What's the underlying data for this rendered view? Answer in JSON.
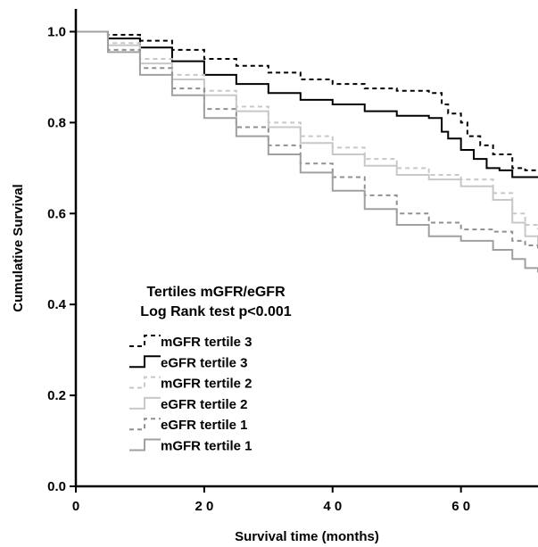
{
  "chart_data": {
    "type": "line",
    "step": true,
    "xlabel": "Survival time (months)",
    "ylabel": "Cumulative Survival",
    "xlim": [
      0,
      72
    ],
    "ylim": [
      0,
      1.05
    ],
    "x_ticks": [
      0,
      20,
      40,
      60
    ],
    "x_tick_labels": [
      "0",
      "2 0",
      "4 0",
      "6 0"
    ],
    "y_ticks": [
      0,
      0.2,
      0.4,
      0.6,
      0.8,
      1.0
    ],
    "y_tick_labels": [
      "0.0",
      "0.2",
      "0.4",
      "0.6",
      "0.8",
      "1.0"
    ],
    "grid": false,
    "legend": {
      "placement": "center-left",
      "title_lines": [
        "Tertiles mGFR/eGFR",
        "Log Rank test p<0.001"
      ]
    },
    "series": [
      {
        "name": "mGFR tertile 3",
        "color": "#000000",
        "dash": "5,4",
        "width": 2,
        "x": [
          0,
          5,
          10,
          15,
          20,
          25,
          30,
          35,
          40,
          45,
          50,
          55,
          57,
          58,
          60,
          61,
          63,
          65,
          68,
          70,
          72
        ],
        "y": [
          1.0,
          0.993,
          0.98,
          0.96,
          0.94,
          0.925,
          0.91,
          0.895,
          0.885,
          0.875,
          0.87,
          0.865,
          0.84,
          0.82,
          0.8,
          0.77,
          0.75,
          0.73,
          0.7,
          0.695,
          0.695
        ]
      },
      {
        "name": "eGFR tertile 3",
        "color": "#000000",
        "dash": "",
        "width": 2,
        "x": [
          0,
          5,
          10,
          15,
          20,
          25,
          30,
          35,
          40,
          45,
          50,
          55,
          57,
          58,
          60,
          62,
          64,
          66,
          68,
          72
        ],
        "y": [
          1.0,
          0.985,
          0.965,
          0.935,
          0.905,
          0.885,
          0.865,
          0.85,
          0.84,
          0.825,
          0.815,
          0.81,
          0.78,
          0.765,
          0.74,
          0.72,
          0.7,
          0.695,
          0.68,
          0.68
        ]
      },
      {
        "name": "mGFR tertile 2",
        "color": "#c8c8c8",
        "dash": "5,4",
        "width": 2,
        "x": [
          0,
          5,
          10,
          15,
          20,
          25,
          30,
          35,
          40,
          45,
          50,
          55,
          60,
          65,
          68,
          70,
          72
        ],
        "y": [
          1.0,
          0.975,
          0.94,
          0.905,
          0.87,
          0.835,
          0.8,
          0.77,
          0.745,
          0.72,
          0.7,
          0.685,
          0.675,
          0.645,
          0.6,
          0.575,
          0.565
        ]
      },
      {
        "name": "eGFR tertile 2",
        "color": "#c8c8c8",
        "dash": "",
        "width": 2,
        "x": [
          0,
          5,
          10,
          15,
          20,
          25,
          30,
          35,
          40,
          45,
          50,
          55,
          60,
          65,
          68,
          70,
          72
        ],
        "y": [
          1.0,
          0.97,
          0.93,
          0.895,
          0.86,
          0.825,
          0.79,
          0.755,
          0.73,
          0.705,
          0.685,
          0.675,
          0.66,
          0.63,
          0.58,
          0.55,
          0.53
        ]
      },
      {
        "name": "eGFR tertile 1",
        "color": "#909090",
        "dash": "5,4",
        "width": 2,
        "x": [
          0,
          5,
          10,
          15,
          20,
          25,
          30,
          35,
          40,
          45,
          50,
          55,
          60,
          65,
          68,
          70,
          72
        ],
        "y": [
          1.0,
          0.96,
          0.92,
          0.875,
          0.83,
          0.79,
          0.75,
          0.71,
          0.68,
          0.64,
          0.6,
          0.58,
          0.565,
          0.56,
          0.54,
          0.53,
          0.52
        ]
      },
      {
        "name": "mGFR tertile 1",
        "color": "#a0a0a0",
        "dash": "",
        "width": 2,
        "x": [
          0,
          5,
          10,
          15,
          20,
          25,
          30,
          35,
          40,
          45,
          50,
          55,
          60,
          65,
          68,
          70,
          72
        ],
        "y": [
          1.0,
          0.955,
          0.905,
          0.86,
          0.81,
          0.77,
          0.73,
          0.69,
          0.65,
          0.61,
          0.575,
          0.55,
          0.54,
          0.52,
          0.5,
          0.48,
          0.47
        ]
      }
    ]
  }
}
